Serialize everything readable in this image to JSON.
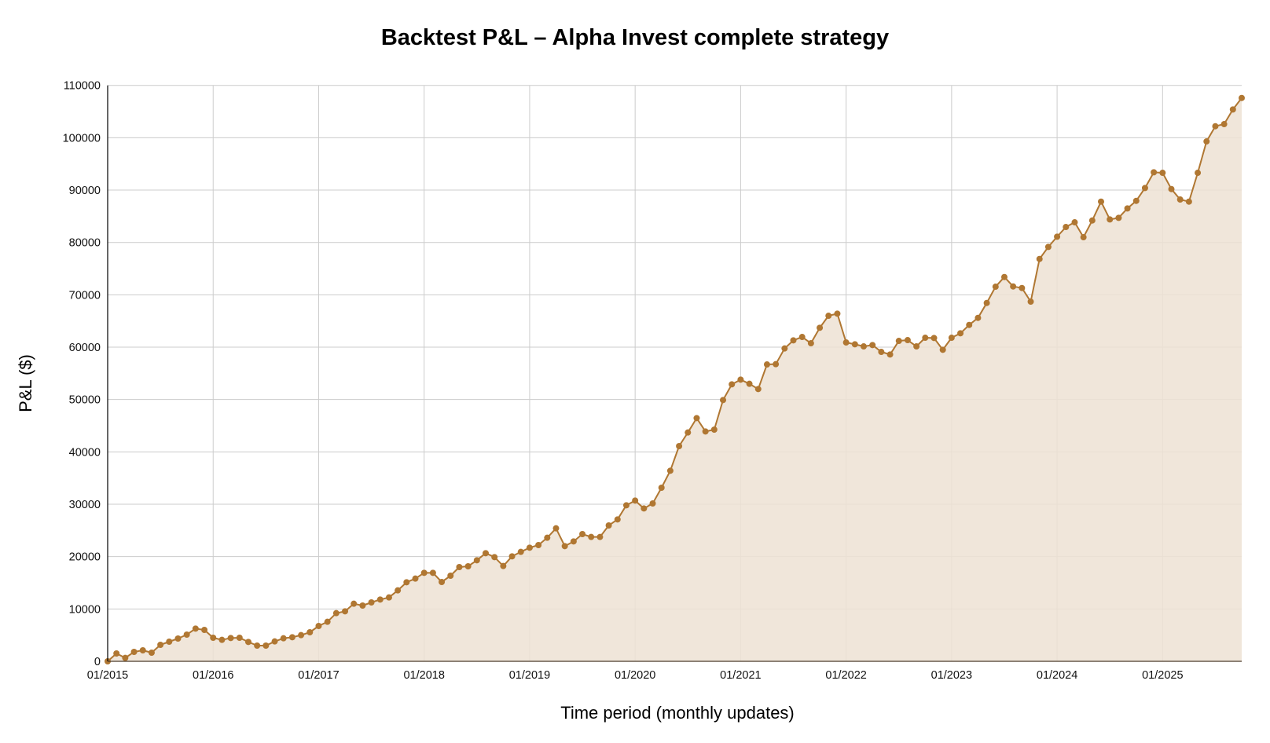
{
  "chart_data": {
    "type": "area",
    "title": "Backtest P&L – Alpha Invest complete strategy",
    "xlabel": "Time period (monthly updates)",
    "ylabel": "P&L ($)",
    "ylim": [
      0,
      110000
    ],
    "yticks": [
      0,
      10000,
      20000,
      30000,
      40000,
      50000,
      60000,
      70000,
      80000,
      90000,
      100000,
      110000
    ],
    "xtick_labels": [
      "01/2015",
      "01/2016",
      "01/2017",
      "01/2018",
      "01/2019",
      "01/2020",
      "01/2021",
      "01/2022",
      "01/2023",
      "01/2024",
      "01/2025"
    ],
    "x_start": "01/2015",
    "x_end": "10/2025",
    "grid": true,
    "legend": null,
    "colors": {
      "line": "#b07732",
      "fill": "#ede2d4",
      "grid": "#cccccc"
    },
    "series": [
      {
        "name": "P&L",
        "values": [
          0,
          1500,
          650,
          1800,
          2100,
          1650,
          3150,
          3750,
          4350,
          5100,
          6250,
          6000,
          4500,
          4100,
          4450,
          4500,
          3700,
          3000,
          3000,
          3800,
          4400,
          4600,
          5000,
          5550,
          6750,
          7550,
          9200,
          9550,
          11000,
          10650,
          11250,
          11800,
          12200,
          13550,
          15100,
          15800,
          16900,
          16900,
          15150,
          16350,
          18000,
          18150,
          19300,
          20650,
          19900,
          18200,
          20050,
          20900,
          21700,
          22200,
          23600,
          25400,
          22000,
          22900,
          24300,
          23750,
          23750,
          25950,
          27100,
          29800,
          30700,
          29200,
          30150,
          33150,
          36400,
          41100,
          43700,
          46450,
          43900,
          44250,
          49900,
          52900,
          53800,
          53000,
          52000,
          56700,
          56750,
          59750,
          61300,
          61950,
          60750,
          63700,
          66000,
          66400,
          60900,
          60550,
          60150,
          60400,
          59100,
          58600,
          61200,
          61350,
          60150,
          61800,
          61750,
          59500,
          61800,
          62650,
          64250,
          65600,
          68450,
          71550,
          73400,
          71600,
          71300,
          68700,
          76850,
          79150,
          81100,
          82950,
          83850,
          81000,
          84200,
          87800,
          84400,
          84700,
          86500,
          87950,
          90400,
          93400,
          93300,
          90200,
          88200,
          87800,
          93300,
          99300,
          102200,
          102600,
          105400,
          107600
        ]
      }
    ]
  }
}
